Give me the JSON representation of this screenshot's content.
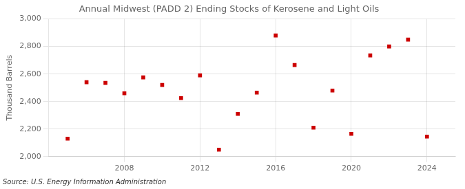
{
  "chart_data": {
    "type": "scatter",
    "title": "Annual Midwest (PADD 2) Ending Stocks of Kerosene and Light Oils",
    "ylabel": "Thousand Barrels",
    "annotation": "Source: U.S. Energy Information Administration",
    "x": [
      2005,
      2006,
      2007,
      2008,
      2009,
      2010,
      2011,
      2012,
      2013,
      2014,
      2015,
      2016,
      2017,
      2018,
      2019,
      2020,
      2021,
      2022,
      2023,
      2024
    ],
    "values": [
      2130,
      2540,
      2535,
      2460,
      2575,
      2520,
      2425,
      2590,
      2050,
      2310,
      2465,
      2880,
      2665,
      2210,
      2480,
      2165,
      2735,
      2800,
      2850,
      2145
    ],
    "color": "#cc0000",
    "marker": "square",
    "xlim": [
      2004,
      2025.5
    ],
    "xticks": [
      2008,
      2012,
      2016,
      2020,
      2024
    ],
    "ylim": [
      2000,
      3000
    ],
    "yticks": [
      {
        "value": 2000,
        "label": "2,000"
      },
      {
        "value": 2200,
        "label": "2,200"
      },
      {
        "value": 2400,
        "label": "2,400"
      },
      {
        "value": 2600,
        "label": "2,600"
      },
      {
        "value": 2800,
        "label": "2,800"
      },
      {
        "value": 3000,
        "label": "3,000"
      }
    ],
    "grid": true
  }
}
